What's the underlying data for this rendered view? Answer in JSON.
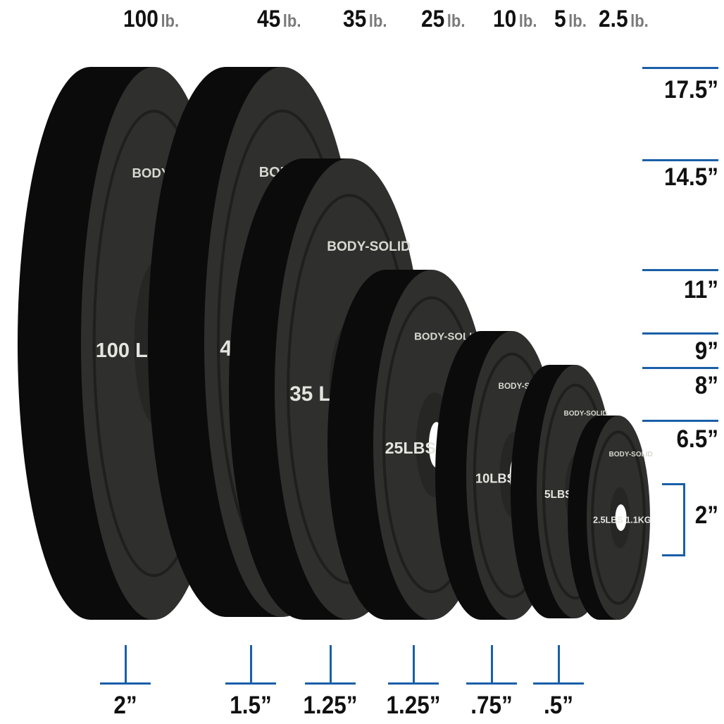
{
  "weights": [
    {
      "value": "100",
      "unit": "lb."
    },
    {
      "value": "45",
      "unit": "lb."
    },
    {
      "value": "35",
      "unit": "lb."
    },
    {
      "value": "25",
      "unit": "lb."
    },
    {
      "value": "10",
      "unit": "lb."
    },
    {
      "value": "5",
      "unit": "lb."
    },
    {
      "value": "2.5",
      "unit": "lb."
    }
  ],
  "diameters": [
    "17.5”",
    "14.5”",
    "11”",
    "9”",
    "8”",
    "6.5”"
  ],
  "hole_diameter": "2”",
  "thicknesses": [
    "2”",
    "1.5”",
    "1.25”",
    "1.25”",
    ".75”",
    ".5”"
  ],
  "plate_text": {
    "brand": "BODY-SOLID",
    "labels": [
      "100 LBS",
      "45 LBS",
      "35 LBS",
      "25LBS",
      "10LBS",
      "5LBS",
      "2.5LBS 1.1KG"
    ]
  },
  "colors": {
    "accent": "#1a5fa8",
    "plate_face": "#2f302d",
    "plate_rim": "#0b0b0b",
    "unit_text": "#7a7a7a"
  }
}
